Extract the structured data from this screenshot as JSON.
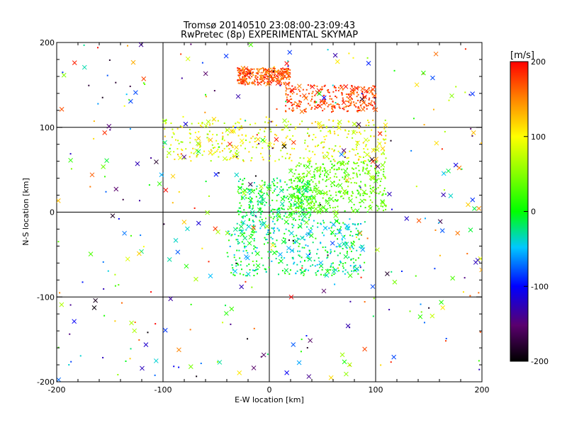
{
  "chart_data": {
    "type": "scatter",
    "title": "Tromsø 20140510 23:08:00-23:09:43",
    "subtitle": "RwPretec (8p) EXPERIMENTAL SKYMAP",
    "xlabel": "E-W location [km]",
    "ylabel": "N-S location [km]",
    "xlim": [
      -200,
      200
    ],
    "ylim": [
      -200,
      200
    ],
    "x_ticks": [
      "-200",
      "-100",
      "0",
      "100",
      "200"
    ],
    "y_ticks": [
      "-200",
      "-100",
      "0",
      "100",
      "200"
    ],
    "grid": true,
    "grid_lines": [
      -100,
      0,
      100
    ],
    "colorbar": {
      "label": "[m/s]",
      "min": -200,
      "max": 200,
      "ticks": [
        "200",
        "100",
        "0",
        "-100",
        "-200"
      ],
      "colormap": "rainbow (black-purple-blue-cyan-green-yellow-red)"
    },
    "markers": {
      "small_points": "dot",
      "large_points": "x"
    },
    "point_clusters": [
      {
        "region": "north arc",
        "x_range": [
          -30,
          20
        ],
        "y_range": [
          150,
          170
        ],
        "velocity_range": [
          140,
          200
        ]
      },
      {
        "region": "north streak",
        "x_range": [
          15,
          100
        ],
        "y_range": [
          118,
          150
        ],
        "velocity_range": [
          150,
          200
        ]
      },
      {
        "region": "central band",
        "x_range": [
          -100,
          110
        ],
        "y_range": [
          60,
          110
        ],
        "velocity_range": [
          50,
          130
        ]
      },
      {
        "region": "east cluster",
        "x_range": [
          20,
          110
        ],
        "y_range": [
          0,
          60
        ],
        "velocity_range": [
          10,
          60
        ]
      },
      {
        "region": "center cluster",
        "x_range": [
          -30,
          40
        ],
        "y_range": [
          -10,
          40
        ],
        "velocity_range": [
          -40,
          40
        ]
      },
      {
        "region": "south-center cluster",
        "x_range": [
          -40,
          90
        ],
        "y_range": [
          -75,
          -10
        ],
        "velocity_range": [
          -60,
          20
        ]
      },
      {
        "region": "sparse field",
        "x_range": [
          -200,
          200
        ],
        "y_range": [
          -200,
          200
        ],
        "velocity_range": [
          -200,
          200
        ]
      }
    ]
  }
}
